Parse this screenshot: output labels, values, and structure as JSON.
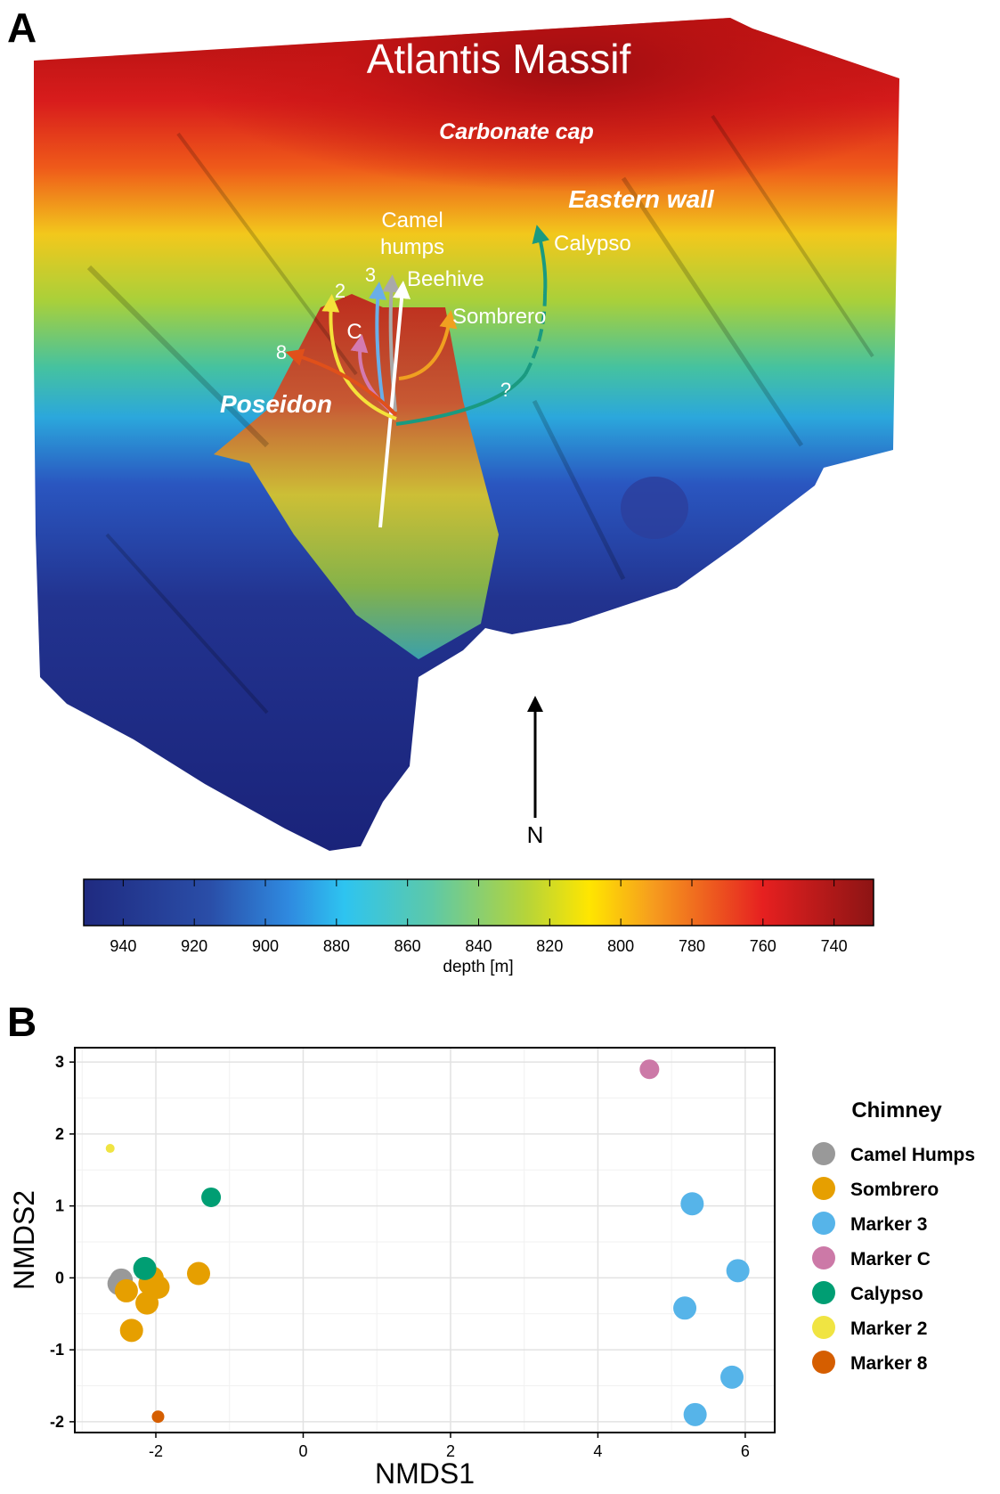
{
  "panel_a": {
    "letter": "A",
    "title": "Atlantis Massif",
    "label_carbonate": "Carbonate cap",
    "label_eastern": "Eastern wall",
    "label_poseidon": "Poseidon",
    "site_camel_1": "Camel",
    "site_camel_2": "humps",
    "site_beehive": "Beehive",
    "site_calypso": "Calypso",
    "site_sombrero": "Sombrero",
    "site_2": "2",
    "site_3": "3",
    "site_8": "8",
    "site_c": "C",
    "question": "?",
    "north": "N",
    "colorbar_ticks": [
      "940",
      "920",
      "900",
      "880",
      "860",
      "840",
      "820",
      "800",
      "780",
      "760",
      "740"
    ],
    "colorbar_label": "depth [m]"
  },
  "chart_data": {
    "type": "scatter",
    "panel_letter": "B",
    "xlabel": "NMDS1",
    "ylabel": "NMDS2",
    "xlim": [
      -3.1,
      6.4
    ],
    "ylim": [
      -2.15,
      3.2
    ],
    "xticks": [
      -2,
      0,
      2,
      4,
      6
    ],
    "yticks": [
      -2,
      -1,
      0,
      1,
      2,
      3
    ],
    "grid": true,
    "legend_title": "Chimney",
    "legend_position": "right",
    "series": [
      {
        "name": "Camel Humps",
        "color": "#999999",
        "points": [
          [
            -2.47,
            -0.03
          ],
          [
            -2.5,
            -0.08
          ]
        ]
      },
      {
        "name": "Sombrero",
        "color": "#E69F00",
        "points": [
          [
            -2.4,
            -0.18
          ],
          [
            -2.33,
            -0.73
          ],
          [
            -2.12,
            -0.35
          ],
          [
            -2.05,
            0.0
          ],
          [
            -1.97,
            -0.13
          ],
          [
            -2.08,
            -0.08
          ],
          [
            -1.42,
            0.06
          ]
        ]
      },
      {
        "name": "Marker 3",
        "color": "#56B4E9",
        "points": [
          [
            5.28,
            1.03
          ],
          [
            5.9,
            0.1
          ],
          [
            5.18,
            -0.42
          ],
          [
            5.82,
            -1.38
          ],
          [
            5.32,
            -1.9
          ]
        ]
      },
      {
        "name": "Marker C",
        "color": "#CC79A7",
        "points": [
          [
            4.7,
            2.9
          ]
        ]
      },
      {
        "name": "Calypso",
        "color": "#009E73",
        "points": [
          [
            -1.25,
            1.12
          ],
          [
            -2.15,
            0.13
          ]
        ]
      },
      {
        "name": "Marker 2",
        "color": "#F0E442",
        "points": [
          [
            -2.62,
            1.8
          ]
        ]
      },
      {
        "name": "Marker 8",
        "color": "#D55E00",
        "points": [
          [
            -1.97,
            -1.93
          ]
        ]
      }
    ]
  }
}
